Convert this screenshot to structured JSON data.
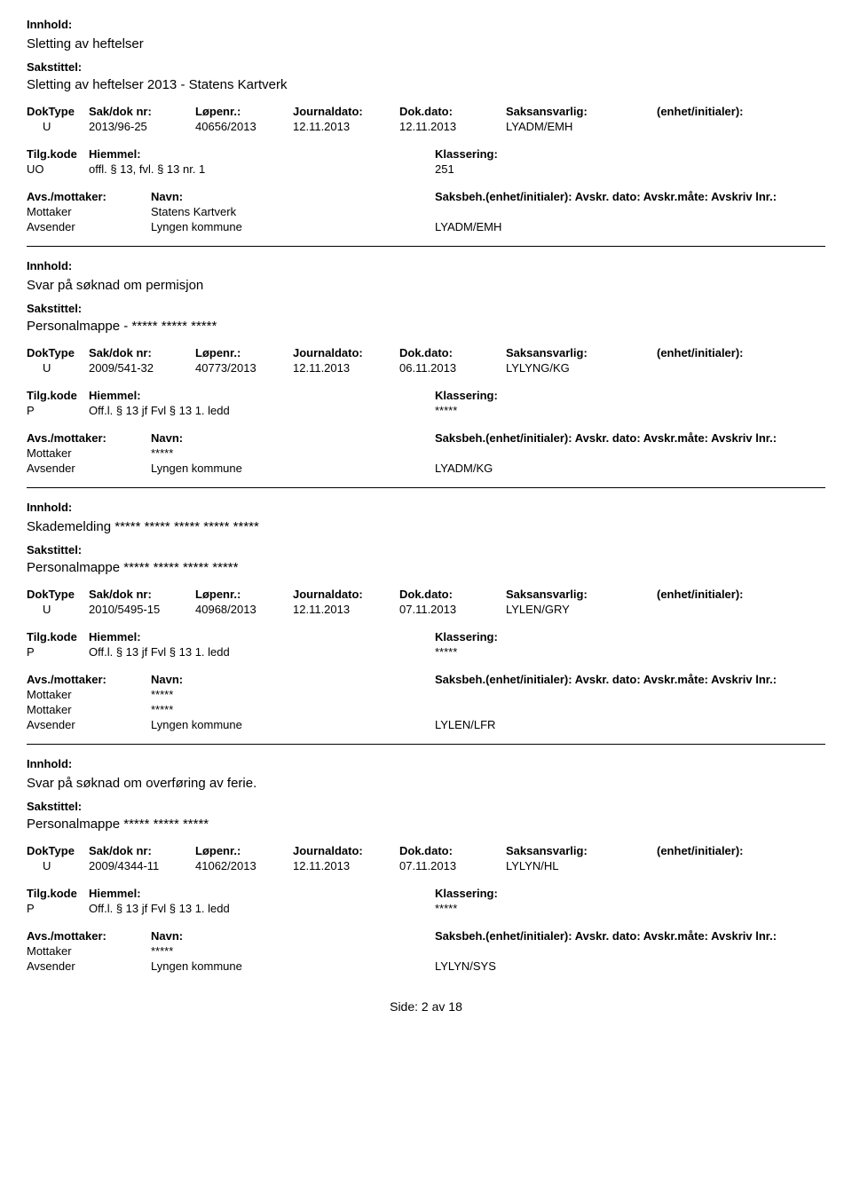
{
  "labels": {
    "innhold": "Innhold:",
    "sakstittel": "Sakstittel:",
    "doktype": "DokType",
    "sakdoknr": "Sak/dok nr:",
    "lopenr": "Løpenr.:",
    "journaldato": "Journaldato:",
    "dokdato": "Dok.dato:",
    "saksansvarlig": "Saksansvarlig:",
    "enhet_init": "(enhet/initialer):",
    "tilgkode": "Tilg.kode",
    "hjemmel": "Hiemmel:",
    "klassering": "Klassering:",
    "avsmottaker": "Avs./mottaker:",
    "navn": "Navn:",
    "saksbeh_full": "Saksbeh.(enhet/initialer): Avskr. dato:  Avskr.måte:  Avskriv lnr.:",
    "mottaker": "Mottaker",
    "avsender": "Avsender",
    "side": "Side:",
    "side_av": "av",
    "side_num": "2",
    "side_total": "18"
  },
  "entries": [
    {
      "innhold_title": "Sletting av heftelser",
      "sakstittel": "Sletting av heftelser 2013 - Statens Kartverk",
      "doktype": "U",
      "sakdoknr": "2013/96-25",
      "lopenr": "40656/2013",
      "jdato": "12.11.2013",
      "ddato": "12.11.2013",
      "ansvarlig": "LYADM/EMH",
      "tilgkode": "UO",
      "hjemmel": "offl. § 13, fvl. § 13 nr. 1",
      "klassering": "251",
      "parties": [
        {
          "role": "Mottaker",
          "name": "Statens Kartverk",
          "saksbeh": ""
        },
        {
          "role": "Avsender",
          "name": "Lyngen kommune",
          "saksbeh": "LYADM/EMH"
        }
      ]
    },
    {
      "innhold_title": "Svar på søknad om permisjon",
      "sakstittel": "Personalmappe - ***** ***** *****",
      "doktype": "U",
      "sakdoknr": "2009/541-32",
      "lopenr": "40773/2013",
      "jdato": "12.11.2013",
      "ddato": "06.11.2013",
      "ansvarlig": "LYLYNG/KG",
      "tilgkode": "P",
      "hjemmel": "Off.l. § 13 jf Fvl § 13 1. ledd",
      "klassering": "*****",
      "parties": [
        {
          "role": "Mottaker",
          "name": "*****",
          "saksbeh": ""
        },
        {
          "role": "Avsender",
          "name": "Lyngen kommune",
          "saksbeh": "LYADM/KG"
        }
      ]
    },
    {
      "innhold_title": "Skademelding ***** ***** ***** ***** *****",
      "sakstittel": "Personalmappe ***** ***** ***** *****",
      "doktype": "U",
      "sakdoknr": "2010/5495-15",
      "lopenr": "40968/2013",
      "jdato": "12.11.2013",
      "ddato": "07.11.2013",
      "ansvarlig": "LYLEN/GRY",
      "tilgkode": "P",
      "hjemmel": "Off.l. § 13 jf Fvl § 13 1. ledd",
      "klassering": "*****",
      "parties": [
        {
          "role": "Mottaker",
          "name": "*****",
          "saksbeh": ""
        },
        {
          "role": "Mottaker",
          "name": "*****",
          "saksbeh": ""
        },
        {
          "role": "Avsender",
          "name": "Lyngen kommune",
          "saksbeh": "LYLEN/LFR"
        }
      ]
    },
    {
      "innhold_title": "Svar på søknad om overføring av ferie.",
      "sakstittel": "Personalmappe ***** ***** *****",
      "doktype": "U",
      "sakdoknr": "2009/4344-11",
      "lopenr": "41062/2013",
      "jdato": "12.11.2013",
      "ddato": "07.11.2013",
      "ansvarlig": "LYLYN/HL",
      "tilgkode": "P",
      "hjemmel": "Off.l. § 13 jf Fvl § 13 1. ledd",
      "klassering": "*****",
      "parties": [
        {
          "role": "Mottaker",
          "name": "*****",
          "saksbeh": ""
        },
        {
          "role": "Avsender",
          "name": "Lyngen kommune",
          "saksbeh": "LYLYN/SYS"
        }
      ]
    }
  ]
}
